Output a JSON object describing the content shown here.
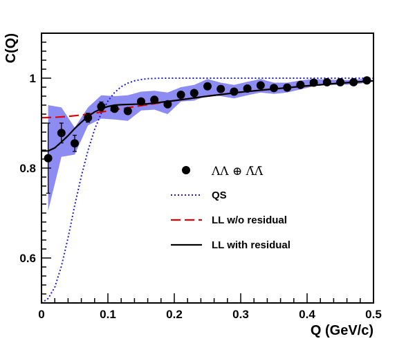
{
  "chart_data": {
    "type": "scatter",
    "xlabel": "Q (GeV/c)",
    "ylabel": "C(Q)",
    "xlim": [
      0,
      0.5
    ],
    "ylim": [
      0.5,
      1.1
    ],
    "xticks": [
      {
        "value": 0,
        "label": "0"
      },
      {
        "value": 0.1,
        "label": "0.1"
      },
      {
        "value": 0.2,
        "label": "0.2"
      },
      {
        "value": 0.3,
        "label": "0.3"
      },
      {
        "value": 0.4,
        "label": "0.4"
      },
      {
        "value": 0.5,
        "label": "0.5"
      }
    ],
    "yticks": [
      {
        "value": 0.6,
        "label": "0.6"
      },
      {
        "value": 0.8,
        "label": "0.8"
      },
      {
        "value": 1,
        "label": "1"
      }
    ],
    "grid": false,
    "legend_position": "center-right",
    "series": [
      {
        "name": "ΛΛ ⊕ Λ̄Λ̄",
        "kind": "points",
        "color": "#000000",
        "x": [
          0.01,
          0.03,
          0.05,
          0.07,
          0.09,
          0.11,
          0.13,
          0.15,
          0.17,
          0.19,
          0.21,
          0.23,
          0.25,
          0.27,
          0.29,
          0.31,
          0.33,
          0.35,
          0.37,
          0.39,
          0.41,
          0.43,
          0.45,
          0.47,
          0.49
        ],
        "y": [
          0.822,
          0.878,
          0.855,
          0.912,
          0.937,
          0.932,
          0.927,
          0.948,
          0.952,
          0.942,
          0.963,
          0.967,
          0.982,
          0.976,
          0.97,
          0.977,
          0.984,
          0.978,
          0.979,
          0.985,
          0.99,
          0.991,
          0.991,
          0.991,
          0.995
        ],
        "err": [
          0.078,
          0.022,
          0.018,
          0.01,
          0.01,
          0.006,
          0.005,
          0.004,
          0.004,
          0.004,
          0.003,
          0.003,
          0.003,
          0.003,
          0.003,
          0.003,
          0.003,
          0.003,
          0.003,
          0.003,
          0.003,
          0.003,
          0.003,
          0.003,
          0.003
        ],
        "band_low": [
          0.705,
          0.825,
          0.83,
          0.895,
          0.91,
          0.908,
          0.905,
          0.928,
          0.93,
          0.92,
          0.948,
          0.95,
          0.962,
          0.96,
          0.955,
          0.962,
          0.968,
          0.965,
          0.968,
          0.975,
          0.982,
          0.985,
          0.985,
          0.986,
          0.99
        ],
        "band_high": [
          0.94,
          0.935,
          0.89,
          0.935,
          0.962,
          0.96,
          0.962,
          0.97,
          0.972,
          0.968,
          0.98,
          0.985,
          0.998,
          0.99,
          0.985,
          0.992,
          0.998,
          0.99,
          0.99,
          0.995,
          0.998,
          0.997,
          0.996,
          0.996,
          1.0
        ]
      },
      {
        "name": "QS",
        "kind": "line",
        "style": "dotted",
        "color": "#1a1acc",
        "x": [
          0,
          0.01,
          0.02,
          0.03,
          0.04,
          0.05,
          0.06,
          0.07,
          0.08,
          0.09,
          0.1,
          0.11,
          0.12,
          0.13,
          0.14,
          0.15,
          0.16,
          0.18,
          0.2,
          0.3,
          0.4,
          0.5
        ],
        "y": [
          0.5,
          0.51,
          0.535,
          0.582,
          0.645,
          0.717,
          0.782,
          0.839,
          0.886,
          0.922,
          0.949,
          0.968,
          0.981,
          0.989,
          0.994,
          0.997,
          0.999,
          1.0,
          1.0,
          1.0,
          1.0,
          1.0
        ]
      },
      {
        "name": "LL w/o residual",
        "kind": "line",
        "style": "dashed",
        "color": "#e00000",
        "x": [
          0,
          0.02,
          0.04,
          0.06,
          0.08,
          0.1,
          0.12,
          0.15,
          0.2,
          0.25,
          0.3,
          0.35,
          0.4,
          0.45,
          0.5
        ],
        "y": [
          0.912,
          0.913,
          0.915,
          0.918,
          0.922,
          0.927,
          0.932,
          0.939,
          0.95,
          0.96,
          0.969,
          0.976,
          0.983,
          0.989,
          0.994
        ]
      },
      {
        "name": "LL with residual",
        "kind": "line",
        "style": "solid",
        "color": "#000000",
        "x": [
          0,
          0.01,
          0.02,
          0.03,
          0.04,
          0.05,
          0.06,
          0.07,
          0.08,
          0.09,
          0.1,
          0.11,
          0.12,
          0.14,
          0.16,
          0.2,
          0.25,
          0.3,
          0.35,
          0.4,
          0.45,
          0.5
        ],
        "y": [
          0.838,
          0.838,
          0.845,
          0.858,
          0.872,
          0.888,
          0.902,
          0.915,
          0.925,
          0.932,
          0.937,
          0.94,
          0.941,
          0.942,
          0.943,
          0.95,
          0.96,
          0.969,
          0.976,
          0.983,
          0.989,
          0.994
        ]
      }
    ],
    "legend": [
      {
        "label": "ΛΛ ⊕ Λ̄Λ̄",
        "marker": "dot"
      },
      {
        "label": "QS",
        "marker": "dotted"
      },
      {
        "label": "LL w/o residual",
        "marker": "dashed"
      },
      {
        "label": "LL with residual",
        "marker": "solid"
      }
    ],
    "band_color": "#8c8cf2"
  }
}
